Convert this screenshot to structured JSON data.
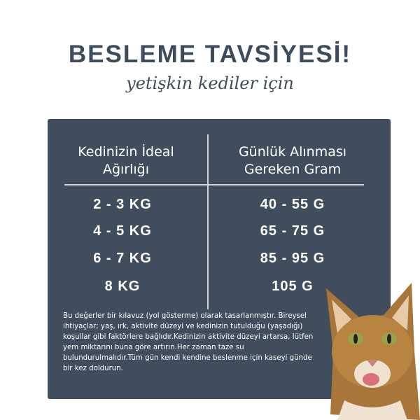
{
  "header": {
    "title": "BESLEME TAVSİYESİ!",
    "subtitle": "yetişkin kediler için"
  },
  "table": {
    "columns": [
      "Kedinizin İdeal Ağırlığı",
      "Günlük Alınması Gereken Gram"
    ],
    "column_lines": [
      [
        "Kedinizin İdeal",
        "Ağırlığı"
      ],
      [
        "Günlük Alınması",
        "Gereken Gram"
      ]
    ],
    "rows": [
      [
        "2 - 3 KG",
        "40 - 55 G"
      ],
      [
        "4 - 5 KG",
        "65 - 75 G"
      ],
      [
        "6 - 7 KG",
        "85 - 95 G"
      ],
      [
        "8 KG",
        "105 G"
      ]
    ]
  },
  "note": "Bu değerler bir kılavuz (yol gösterme) olarak tasarlanmıştır. Bireysel ihtiyaçlar; yaş, ırk, aktivite düzeyi ve kedinizin tutulduğu (yaşadığı) koşullar gibi faktörlere bağlıdır.Kedinizin aktivite düzeyi artarsa, lütfen yem miktarını buna göre artırın.Her zaman taze su bulundurulmalıdır.Tüm gün kendi kendine beslenme için kaseyi günde bir kez doldurun.",
  "colors": {
    "panel": "#3f4d5c",
    "title": "#3d4c5c"
  }
}
